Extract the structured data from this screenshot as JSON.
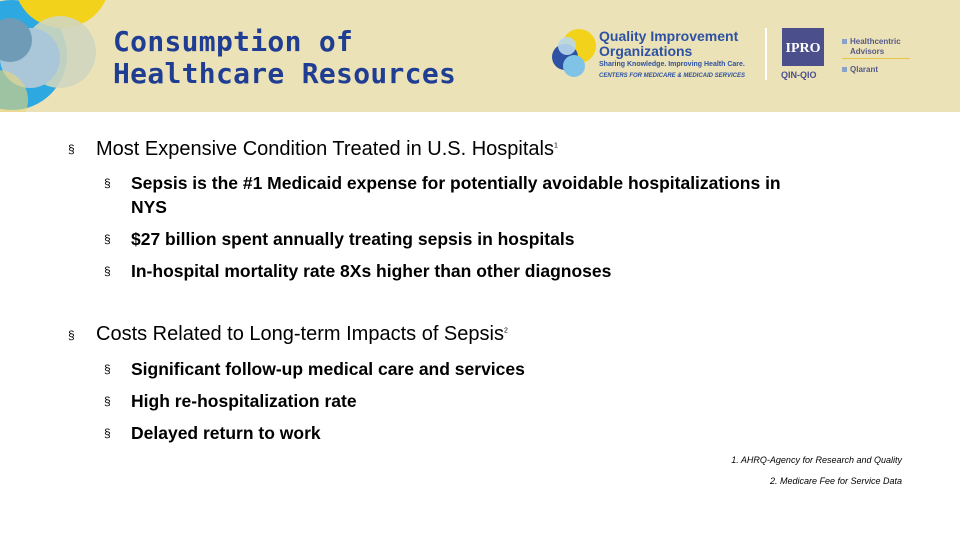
{
  "slide": {
    "title_line1": "Consumption of",
    "title_line2": "Healthcare Resources"
  },
  "logos": {
    "qio_name_line1": "Quality Improvement",
    "qio_name_line2": "Organizations",
    "qio_tagline": "Sharing Knowledge. Improving Health Care.",
    "qio_subtagline": "CENTERS FOR MEDICARE & MEDICAID SERVICES",
    "ipro_mark": "IPRO",
    "ipro_sub": "QIN-QIO",
    "partner1_line1": "Healthcentric",
    "partner1_line2": "Advisors",
    "partner2": "Qlarant"
  },
  "content": {
    "bullet_symbol": "§",
    "sections": [
      {
        "heading": "Most Expensive Condition Treated in U.S. Hospitals",
        "note_ref": "1",
        "items": [
          "Sepsis is the #1 Medicaid expense for potentially avoidable hospitalizations in",
          "NYS",
          "$27 billion spent annually treating sepsis in hospitals",
          "In-hospital mortality rate 8Xs higher than other diagnoses"
        ]
      },
      {
        "heading": "Costs Related to Long-term Impacts of Sepsis",
        "note_ref": "2",
        "items": [
          "Significant follow-up medical care and services",
          "High re-hospitalization rate",
          "Delayed return to work"
        ]
      }
    ]
  },
  "footnotes": [
    "1. AHRQ-Agency for Research and Quality",
    "2. Medicare Fee for Service Data"
  ],
  "colors": {
    "header_bg": "#ece2b7",
    "title": "#1f3e93",
    "accent_yellow": "#f3d21c",
    "accent_blue": "#2f9fd8",
    "ipro_purple": "#4b4f8c"
  }
}
